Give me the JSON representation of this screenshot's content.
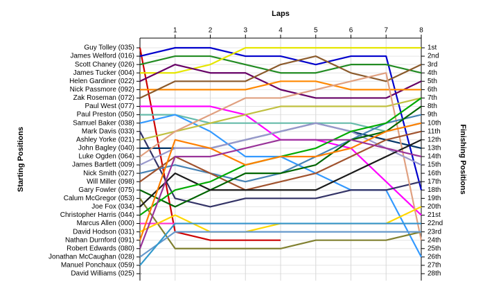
{
  "chart_data": {
    "type": "bump",
    "xlabel": "Laps",
    "ylabel": "Starting Positions",
    "y2label": "Finishing Positions",
    "x": [
      0,
      1,
      2,
      3,
      4,
      5,
      6,
      7,
      8
    ],
    "xlim": [
      0,
      8
    ],
    "xticks": [
      1,
      2,
      3,
      4,
      5,
      6,
      7,
      8
    ],
    "ylim": [
      28,
      1
    ],
    "y2lim": [
      28,
      1
    ],
    "y2ticks": [
      {
        "value": 1,
        "label": "1st"
      },
      {
        "value": 2,
        "label": "2nd"
      },
      {
        "value": 3,
        "label": "3rd"
      },
      {
        "value": 4,
        "label": "4th"
      },
      {
        "value": 5,
        "label": "5th"
      },
      {
        "value": 6,
        "label": "6th"
      },
      {
        "value": 7,
        "label": "7th"
      },
      {
        "value": 8,
        "label": "8th"
      },
      {
        "value": 9,
        "label": "9th"
      },
      {
        "value": 10,
        "label": "10th"
      },
      {
        "value": 11,
        "label": "11th"
      },
      {
        "value": 12,
        "label": "12th"
      },
      {
        "value": 13,
        "label": "13th"
      },
      {
        "value": 14,
        "label": "14th"
      },
      {
        "value": 15,
        "label": "15th"
      },
      {
        "value": 16,
        "label": "16th"
      },
      {
        "value": 17,
        "label": "17th"
      },
      {
        "value": 18,
        "label": "18th"
      },
      {
        "value": 19,
        "label": "19th"
      },
      {
        "value": 20,
        "label": "20th"
      },
      {
        "value": 21,
        "label": "21st"
      },
      {
        "value": 22,
        "label": "22nd"
      },
      {
        "value": 23,
        "label": "23rd"
      },
      {
        "value": 24,
        "label": "24th"
      },
      {
        "value": 25,
        "label": "25th"
      },
      {
        "value": 26,
        "label": "26th"
      },
      {
        "value": 27,
        "label": "27th"
      },
      {
        "value": 28,
        "label": "28th"
      }
    ],
    "grid": true,
    "series": [
      {
        "name": "Guy Tolley (035)",
        "color": "#cc0000",
        "values": [
          1,
          23,
          24,
          24,
          24,
          null,
          null,
          null,
          null
        ]
      },
      {
        "name": "James Welford (016)",
        "color": "#0000cc",
        "values": [
          2,
          1,
          1,
          2,
          2,
          3,
          2,
          2,
          18
        ]
      },
      {
        "name": "Scott Chaney (026)",
        "color": "#228b22",
        "values": [
          3,
          2,
          2,
          3,
          4,
          4,
          3,
          3,
          4
        ]
      },
      {
        "name": "James Tucker (004)",
        "color": "#e6e600",
        "values": [
          4,
          4,
          3,
          1,
          1,
          1,
          1,
          1,
          1
        ]
      },
      {
        "name": "Helen Gardiner (022)",
        "color": "#660066",
        "values": [
          5,
          3,
          4,
          4,
          6,
          7,
          7,
          7,
          5
        ]
      },
      {
        "name": "Nick Passmore (092)",
        "color": "#ff8800",
        "values": [
          6,
          6,
          6,
          6,
          5,
          5,
          6,
          6,
          6
        ]
      },
      {
        "name": "Zak Roseman (072)",
        "color": "#8b5a2b",
        "values": [
          7,
          5,
          5,
          5,
          3,
          2,
          4,
          5,
          3
        ]
      },
      {
        "name": "Paul West (077)",
        "color": "#ff00ff",
        "values": [
          8,
          8,
          8,
          9,
          12,
          12,
          13,
          17,
          21
        ]
      },
      {
        "name": "Paul Preston (050)",
        "color": "#66bbaa",
        "values": [
          9,
          9,
          10,
          10,
          10,
          10,
          10,
          11,
          10
        ]
      },
      {
        "name": "Samuel Baker (038)",
        "color": "#3399ff",
        "values": [
          10,
          9,
          11,
          14,
          14,
          16,
          18,
          18,
          26
        ]
      },
      {
        "name": "Mark Davis (033)",
        "color": "#333366",
        "values": [
          11,
          19,
          20,
          19,
          19,
          19,
          18,
          18,
          17
        ]
      },
      {
        "name": "Ashley Yorke (021)",
        "color": "#c0c040",
        "values": [
          12,
          11,
          10,
          9,
          8,
          8,
          8,
          8,
          7
        ]
      },
      {
        "name": "John Bagley (040)",
        "color": "#003366",
        "values": [
          13,
          13,
          13,
          12,
          11,
          10,
          11,
          12,
          13
        ]
      },
      {
        "name": "Luke Ogden (064)",
        "color": "#e0a080",
        "values": [
          14,
          11,
          9,
          7,
          7,
          6,
          5,
          4,
          24
        ]
      },
      {
        "name": "James Bartlett (009)",
        "color": "#9999cc",
        "values": [
          15,
          13,
          13,
          12,
          11,
          10,
          11,
          13,
          15
        ]
      },
      {
        "name": "Nick Smith (027)",
        "color": "#4682b4",
        "values": [
          16,
          15,
          16,
          17,
          16,
          14,
          12,
          10,
          9
        ]
      },
      {
        "name": "Will Miller (098)",
        "color": "#a0522d",
        "values": [
          17,
          14,
          16,
          18,
          17,
          16,
          14,
          12,
          11
        ]
      },
      {
        "name": "Gary Fowler (075)",
        "color": "#006400",
        "values": [
          18,
          20,
          18,
          16,
          16,
          15,
          12,
          11,
          8
        ]
      },
      {
        "name": "Calum McGregor (053)",
        "color": "#808030",
        "values": [
          19,
          25,
          25,
          25,
          25,
          24,
          24,
          24,
          23
        ]
      },
      {
        "name": "Joe Fox (034)",
        "color": "#1a1a1a",
        "values": [
          20,
          16,
          18,
          18,
          18,
          18,
          16,
          14,
          12
        ]
      },
      {
        "name": "Christopher Harris (044)",
        "color": "#00aa00",
        "values": [
          21,
          18,
          17,
          15,
          14,
          13,
          11,
          10,
          7
        ]
      },
      {
        "name": "Marcus Allen (000)",
        "color": "#ff33cc",
        "values": [
          22,
          22,
          22,
          22,
          22,
          22,
          22,
          22,
          22
        ]
      },
      {
        "name": "David Hodson (031)",
        "color": "#ffd700",
        "values": [
          23,
          21,
          23,
          23,
          22,
          22,
          22,
          22,
          20
        ]
      },
      {
        "name": "Nathan Durnford (091)",
        "color": "#ff7f00",
        "values": [
          24,
          12,
          13,
          15,
          14,
          14,
          13,
          11,
          10
        ]
      },
      {
        "name": "Robert Edwards (080)",
        "color": "#993399",
        "values": [
          25,
          14,
          14,
          13,
          12,
          12,
          12,
          13,
          14
        ]
      },
      {
        "name": "Jonathan McCaughan (028)",
        "color": "#6699cc",
        "values": [
          26,
          23,
          23,
          23,
          23,
          23,
          23,
          23,
          23
        ]
      },
      {
        "name": "Manuel Ponchaux (059)",
        "color": "#3399cc",
        "values": [
          27,
          22,
          22,
          22,
          22,
          22,
          22,
          22,
          22
        ]
      },
      {
        "name": "David Williams (025)",
        "color": "#999999",
        "values": [
          28,
          null,
          null,
          null,
          null,
          null,
          null,
          null,
          null
        ]
      }
    ]
  }
}
